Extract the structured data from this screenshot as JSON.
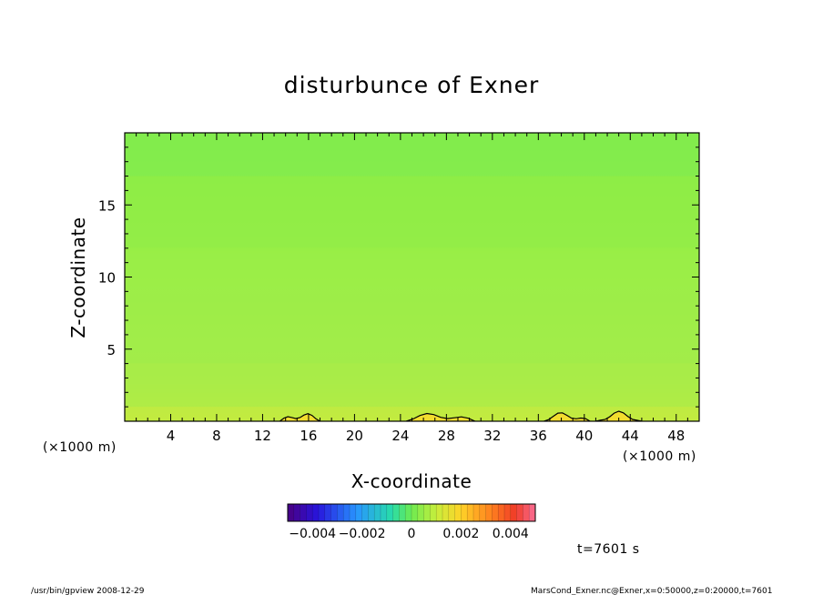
{
  "chart_data": {
    "type": "heatmap",
    "title": "disturbunce of Exner",
    "xlabel": "X-coordinate",
    "ylabel": "Z-coordinate",
    "x_unit_left": "(×1000 m)",
    "x_unit_right": "(×1000 m)",
    "xlim": [
      0,
      50
    ],
    "ylim": [
      0,
      20
    ],
    "x_ticks": [
      "4",
      "8",
      "12",
      "16",
      "20",
      "24",
      "28",
      "32",
      "36",
      "40",
      "44",
      "48"
    ],
    "x_tick_values": [
      4,
      8,
      12,
      16,
      20,
      24,
      28,
      32,
      36,
      40,
      44,
      48
    ],
    "y_ticks": [
      "5",
      "10",
      "15"
    ],
    "y_tick_values": [
      5,
      10,
      15
    ],
    "colorbar": {
      "range": [
        -0.005,
        0.005
      ],
      "tick_labels": [
        "−0.004",
        "−0.002",
        "0",
        "0.002",
        "0.004"
      ],
      "tick_values": [
        -0.004,
        -0.002,
        0,
        0.002,
        0.004
      ]
    },
    "field_summary": [
      {
        "z_range": [
          0,
          1
        ],
        "value": 0.0006
      },
      {
        "z_range": [
          1,
          4
        ],
        "value": 0.0003
      },
      {
        "z_range": [
          4,
          12
        ],
        "value": 0.0002
      },
      {
        "z_range": [
          12,
          17
        ],
        "value": 0.0001
      },
      {
        "z_range": [
          17,
          20
        ],
        "value": -0.0001
      }
    ],
    "zero_contour_x_ranges": [
      [
        13.5,
        17
      ],
      [
        24.5,
        30.5
      ],
      [
        36.5,
        40.5
      ],
      [
        41,
        45
      ]
    ],
    "time_label": "t=7601 s"
  },
  "footer": {
    "left": "/usr/bin/gpview  2008-12-29",
    "right": "MarsCond_Exner.nc@Exner,x=0:50000,z=0:20000,t=7601"
  }
}
